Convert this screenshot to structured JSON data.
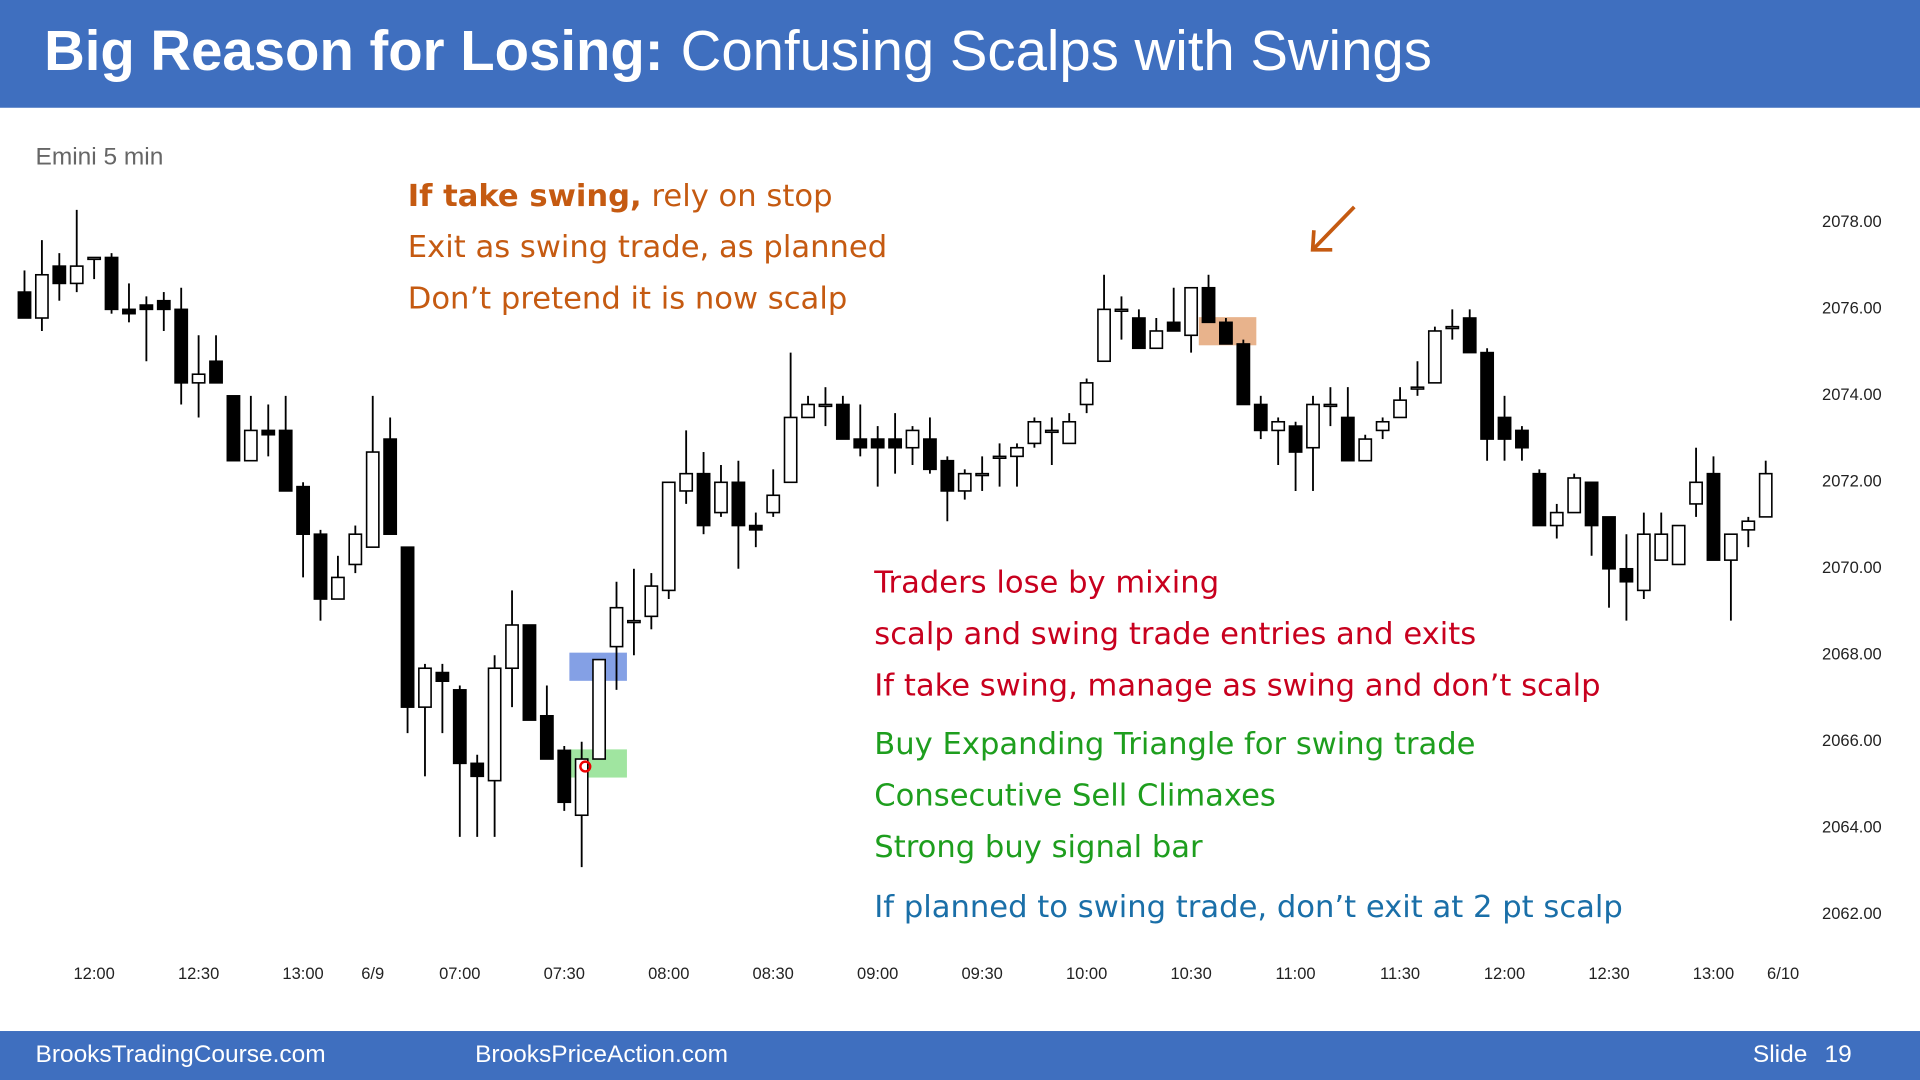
{
  "slide": {
    "title_bold": "Big Reason for Losing:",
    "title_rest": "Confusing Scalps with Swings",
    "footer_left": "BrooksTradingCourse.com",
    "footer_mid": "BrooksPriceAction.com",
    "slide_word": "Slide",
    "slide_number": "19"
  },
  "notes": [
    {
      "color": "#c55a11",
      "lead": "If take swing,",
      "lines": [
        "rely on stop",
        "Exit as swing trade, as planned",
        "Don’t pretend it is now scalp"
      ]
    },
    {
      "color": "#c8001e",
      "lines": [
        "Traders lose by mixing",
        "scalp and swing trade entries and exits",
        "If take swing, manage as swing and don’t scalp"
      ]
    },
    {
      "color": "#1e9e1e",
      "lines": [
        "Buy Expanding Triangle for swing trade",
        "Consecutive Sell Climaxes",
        "Strong buy signal bar"
      ]
    },
    {
      "color": "#1a6fa8",
      "lines": [
        "If planned to swing trade, don’t exit at 2 pt scalp"
      ]
    }
  ],
  "chart_data": {
    "type": "candlestick",
    "subtitle": "Emini 5 min",
    "up_color": "#ffffff",
    "down_color": "#000000",
    "categories": [
      null,
      null,
      null,
      null,
      "12:00",
      null,
      null,
      null,
      null,
      null,
      "12:30",
      null,
      null,
      null,
      null,
      null,
      "13:00",
      null,
      null,
      null,
      "6/9",
      null,
      null,
      null,
      null,
      "07:00",
      null,
      null,
      null,
      null,
      null,
      "07:30",
      null,
      null,
      null,
      null,
      null,
      "08:00",
      null,
      null,
      null,
      null,
      null,
      "08:30",
      null,
      null,
      null,
      null,
      null,
      "09:00",
      null,
      null,
      null,
      null,
      null,
      "09:30",
      null,
      null,
      null,
      null,
      null,
      "10:00",
      null,
      null,
      null,
      null,
      null,
      "10:30",
      null,
      null,
      null,
      null,
      null,
      "11:00",
      null,
      null,
      null,
      null,
      null,
      "11:30",
      null,
      null,
      null,
      null,
      null,
      "12:00",
      null,
      null,
      null,
      null,
      null,
      "12:30",
      null,
      null,
      null,
      null,
      null,
      "13:00",
      null,
      null,
      null,
      "6/10"
    ],
    "open": [
      2076.4,
      2075.8,
      2077,
      2076.6,
      2077.2,
      2077.2,
      2076.0,
      2076.1,
      2076.2,
      2076.0,
      2074.3,
      2074.8,
      2074,
      2072.5,
      2073.2,
      2073.2,
      2071.9,
      2070.8,
      2069.3,
      2070.1,
      2070.5,
      2073,
      2070.5,
      2066.8,
      2067.6,
      2067.2,
      2065.5,
      2065.1,
      2067.7,
      2068.7,
      2066.6,
      2065.8,
      2064.3,
      2065.6,
      2068.2,
      2068.8,
      2068.9,
      2069.5,
      2071.8,
      2072.2,
      2071.3,
      2072,
      2071,
      2071.3,
      2072,
      2073.5,
      2073.8,
      2073.8,
      2073,
      2073,
      2073,
      2072.8,
      2073,
      2072.5,
      2071.8,
      2072.2,
      2072.6,
      2072.6,
      2072.9,
      2073.2,
      2072.9,
      2073.8,
      2074.8,
      2076,
      2075.8,
      2075.1,
      2075.7,
      2075.4,
      2076.5,
      2075.7,
      2075.2,
      2073.8,
      2073.2,
      2073.3,
      2072.8,
      2073.8,
      2073.5,
      2072.5,
      2073.2,
      2073.5,
      2074.2,
      2074.3,
      2075.6,
      2075.8,
      2075,
      2073.5,
      2073.2,
      2072.2,
      2071,
      2071.3,
      2072,
      2071.2,
      2070,
      2069.5,
      2070.2,
      2070.1,
      2071.5,
      2072.2,
      2070.2,
      2070.9,
      2071.2,
      null
    ],
    "high": [
      2076.9,
      2077.6,
      2077.3,
      2078.3,
      2077.2,
      2077.3,
      2076.6,
      2076.3,
      2076.4,
      2076.5,
      2075.4,
      2075.4,
      2074.0,
      2074,
      2073.8,
      2074,
      2072,
      2070.9,
      2070.3,
      2071,
      2074,
      2073.5,
      2070.5,
      2067.8,
      2067.8,
      2067.3,
      2065.7,
      2068.0,
      2069.5,
      2068.7,
      2067.3,
      2065.9,
      2066,
      2067.9,
      2069.7,
      2070,
      2069.9,
      2072,
      2073.2,
      2072.7,
      2072.4,
      2072.5,
      2071.3,
      2072.3,
      2075,
      2074,
      2074.2,
      2074,
      2073.8,
      2073.3,
      2073.6,
      2073.3,
      2073.5,
      2072.6,
      2072.3,
      2072.6,
      2072.9,
      2072.9,
      2073.5,
      2073.5,
      2073.6,
      2074.4,
      2076.8,
      2076.3,
      2076,
      2075.8,
      2076.5,
      2076.5,
      2076.8,
      2075.8,
      2075.3,
      2074,
      2073.5,
      2073.4,
      2074,
      2074.2,
      2074.2,
      2073.1,
      2073.5,
      2074.2,
      2074.8,
      2075.6,
      2076,
      2076.0,
      2075.1,
      2074,
      2073.3,
      2072.3,
      2071.5,
      2072.2,
      2072,
      2071.2,
      2070.8,
      2071.3,
      2071.3,
      2071,
      2072.8,
      2072.6,
      2070.8,
      2071.2,
      2072.5,
      null
    ],
    "low": [
      2075.8,
      2075.5,
      2076.2,
      2076.4,
      2076.7,
      2075.9,
      2075.7,
      2074.8,
      2075.5,
      2073.8,
      2073.5,
      2074.3,
      2072.5,
      2072.5,
      2072.6,
      2071.8,
      2069.8,
      2068.8,
      2069.3,
      2069.9,
      2070.5,
      2070.8,
      2066.2,
      2065.2,
      2066.2,
      2063.8,
      2063.8,
      2063.8,
      2066.8,
      2066.5,
      2065.6,
      2064.4,
      2063.1,
      2065.6,
      2067.2,
      2068,
      2068.6,
      2069.3,
      2071.5,
      2070.8,
      2071.2,
      2070,
      2070.5,
      2071.2,
      2072,
      2073.5,
      2073.3,
      2073,
      2072.6,
      2071.9,
      2072.2,
      2072.4,
      2072.2,
      2071.1,
      2071.6,
      2071.8,
      2071.9,
      2071.9,
      2072.8,
      2072.4,
      2072.9,
      2073.6,
      2074.8,
      2075.3,
      2075.1,
      2075.1,
      2075.5,
      2075.0,
      2075.7,
      2075.2,
      2073.8,
      2073,
      2072.4,
      2071.8,
      2071.8,
      2073.3,
      2072.5,
      2072.5,
      2073,
      2073.5,
      2074,
      2074.3,
      2075.3,
      2075.0,
      2072.5,
      2072.5,
      2072.5,
      2071,
      2070.7,
      2071.3,
      2070.3,
      2069.1,
      2068.8,
      2069.3,
      2070.2,
      2070.1,
      2071.2,
      2070.2,
      2068.8,
      2070.5,
      2071.2,
      null
    ],
    "close": [
      2075.8,
      2076.8,
      2076.6,
      2077.0,
      2077.2,
      2076.0,
      2075.9,
      2076.0,
      2076.0,
      2074.3,
      2074.5,
      2074.3,
      2072.5,
      2073.2,
      2073.1,
      2071.8,
      2070.8,
      2069.3,
      2069.8,
      2070.8,
      2072.7,
      2070.8,
      2066.8,
      2067.7,
      2067.4,
      2065.5,
      2065.2,
      2067.7,
      2068.7,
      2066.5,
      2065.6,
      2064.6,
      2065.6,
      2067.9,
      2069.1,
      2068.8,
      2069.6,
      2072,
      2072.2,
      2071,
      2072,
      2071,
      2070.9,
      2071.7,
      2073.5,
      2073.8,
      2073.8,
      2073,
      2072.8,
      2072.8,
      2072.8,
      2073.2,
      2072.3,
      2071.8,
      2072.2,
      2072.2,
      2072.6,
      2072.8,
      2073.4,
      2073.2,
      2073.4,
      2074.3,
      2076,
      2076,
      2075.1,
      2075.5,
      2075.5,
      2076.5,
      2075.7,
      2075.2,
      2073.8,
      2073.2,
      2073.4,
      2072.7,
      2073.8,
      2073.8,
      2072.5,
      2073,
      2073.4,
      2073.9,
      2074.2,
      2075.5,
      2075.6,
      2075.0,
      2073,
      2073,
      2072.8,
      2071,
      2071.3,
      2072.1,
      2071,
      2070,
      2069.7,
      2070.8,
      2070.8,
      2071,
      2072,
      2070.2,
      2070.8,
      2071.1,
      2072.2,
      null
    ],
    "ylim": [
      2061,
      2080
    ],
    "yticks": [
      {
        "value": 2062,
        "label": "2062.00"
      },
      {
        "value": 2064,
        "label": "2064.00"
      },
      {
        "value": 2066,
        "label": "2066.00"
      },
      {
        "value": 2068,
        "label": "2068.00"
      },
      {
        "value": 2070,
        "label": "2070.00"
      },
      {
        "value": 2072,
        "label": "2072.00"
      },
      {
        "value": 2074,
        "label": "2074.00"
      },
      {
        "value": 2076,
        "label": "2076.00"
      },
      {
        "value": 2078,
        "label": "2078.00"
      }
    ],
    "grid": false
  }
}
